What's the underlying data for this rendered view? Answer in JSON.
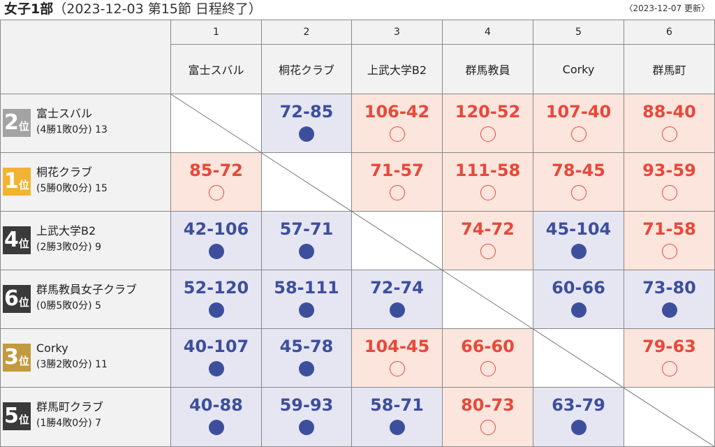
{
  "header": {
    "title": "女子1部",
    "subtitle": "（2023-12-03 第15節 日程終了）",
    "updated": "〈2023-12-07 更新〉"
  },
  "colors": {
    "win_bg": "#fbe5dd",
    "loss_bg": "#e6e6f3",
    "win_text": "#e8483a",
    "loss_text": "#3d4f9c",
    "header_bg": "#f2f2f2"
  },
  "columns": [
    {
      "num": "1",
      "name": "富士スバル"
    },
    {
      "num": "2",
      "name": "桐花クラブ"
    },
    {
      "num": "3",
      "name": "上武大学B2"
    },
    {
      "num": "4",
      "name": "群馬教員"
    },
    {
      "num": "5",
      "name": "Corky"
    },
    {
      "num": "6",
      "name": "群馬町"
    }
  ],
  "rows": [
    {
      "rank": "2",
      "rank_unit": "位",
      "rank_color": "#a3a3a3",
      "name": "富士スバル",
      "record": "(4勝1敗0分) 13",
      "cells": [
        {
          "type": "self"
        },
        {
          "type": "loss",
          "score": "72-85"
        },
        {
          "type": "win",
          "score": "106-42"
        },
        {
          "type": "win",
          "score": "120-52"
        },
        {
          "type": "win",
          "score": "107-40"
        },
        {
          "type": "win",
          "score": "88-40"
        }
      ]
    },
    {
      "rank": "1",
      "rank_unit": "位",
      "rank_color": "#f2b233",
      "name": "桐花クラブ",
      "record": "(5勝0敗0分) 15",
      "cells": [
        {
          "type": "win",
          "score": "85-72"
        },
        {
          "type": "self"
        },
        {
          "type": "win",
          "score": "71-57"
        },
        {
          "type": "win",
          "score": "111-58"
        },
        {
          "type": "win",
          "score": "78-45"
        },
        {
          "type": "win",
          "score": "93-59"
        }
      ]
    },
    {
      "rank": "4",
      "rank_unit": "位",
      "rank_color": "#3a3a3a",
      "name": "上武大学B2",
      "record": "(2勝3敗0分) 9",
      "cells": [
        {
          "type": "loss",
          "score": "42-106"
        },
        {
          "type": "loss",
          "score": "57-71"
        },
        {
          "type": "self"
        },
        {
          "type": "win",
          "score": "74-72"
        },
        {
          "type": "loss",
          "score": "45-104"
        },
        {
          "type": "win",
          "score": "71-58"
        }
      ]
    },
    {
      "rank": "6",
      "rank_unit": "位",
      "rank_color": "#3a3a3a",
      "name": "群馬教員女子クラブ",
      "record": "(0勝5敗0分) 5",
      "cells": [
        {
          "type": "loss",
          "score": "52-120"
        },
        {
          "type": "loss",
          "score": "58-111"
        },
        {
          "type": "loss",
          "score": "72-74"
        },
        {
          "type": "self"
        },
        {
          "type": "loss",
          "score": "60-66"
        },
        {
          "type": "loss",
          "score": "73-80"
        }
      ]
    },
    {
      "rank": "3",
      "rank_unit": "位",
      "rank_color": "#c29a3f",
      "name": "Corky",
      "record": "(3勝2敗0分) 11",
      "cells": [
        {
          "type": "loss",
          "score": "40-107"
        },
        {
          "type": "loss",
          "score": "45-78"
        },
        {
          "type": "win",
          "score": "104-45"
        },
        {
          "type": "win",
          "score": "66-60"
        },
        {
          "type": "self"
        },
        {
          "type": "win",
          "score": "79-63"
        }
      ]
    },
    {
      "rank": "5",
      "rank_unit": "位",
      "rank_color": "#3a3a3a",
      "name": "群馬町クラブ",
      "record": "(1勝4敗0分) 7",
      "cells": [
        {
          "type": "loss",
          "score": "40-88"
        },
        {
          "type": "loss",
          "score": "59-93"
        },
        {
          "type": "loss",
          "score": "58-71"
        },
        {
          "type": "win",
          "score": "80-73"
        },
        {
          "type": "loss",
          "score": "63-79"
        },
        {
          "type": "self"
        }
      ]
    }
  ]
}
